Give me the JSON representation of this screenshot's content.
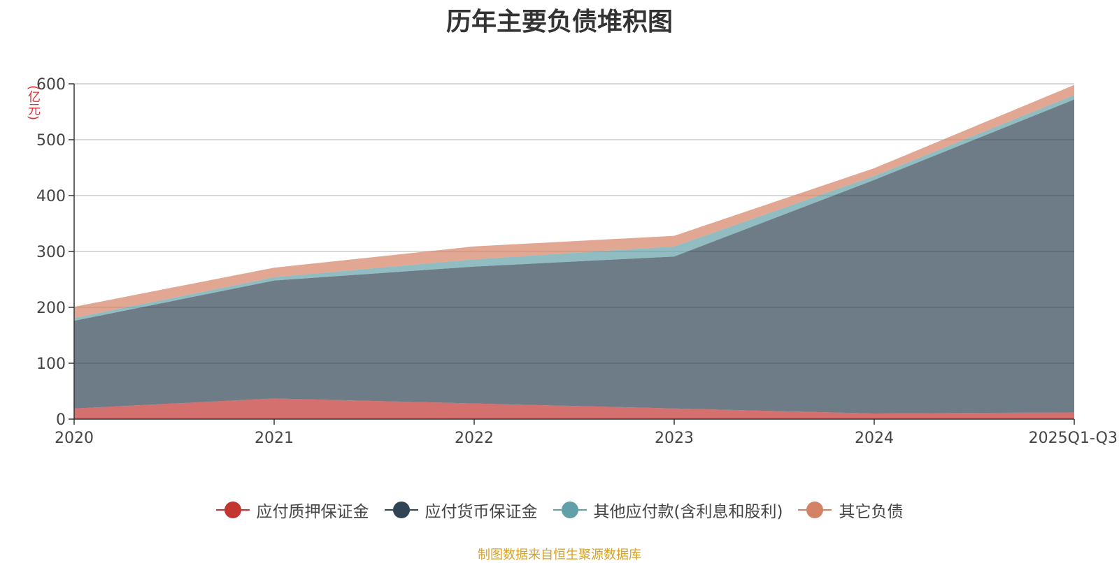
{
  "title": "历年主要负债堆积图",
  "unit_label": "(亿元)",
  "source_text": "制图数据来自恒生聚源数据库",
  "chart_data": {
    "type": "area",
    "stacked": true,
    "title": "历年主要负债堆积图",
    "ylabel": "(亿元)",
    "xlabel": "",
    "categories": [
      "2020",
      "2021",
      "2022",
      "2023",
      "2024",
      "2025Q1-Q3"
    ],
    "ylim": [
      0,
      600
    ],
    "yticks": [
      0,
      100,
      200,
      300,
      400,
      500,
      600
    ],
    "grid": true,
    "legend_position": "bottom",
    "series": [
      {
        "name": "应付质押保证金",
        "color": "#c23531",
        "values": [
          19,
          37,
          28,
          19,
          10,
          12
        ]
      },
      {
        "name": "应付货币保证金",
        "color": "#2f4554",
        "values": [
          157,
          211,
          245,
          272,
          418,
          560
        ]
      },
      {
        "name": "其他应付款(含利息和股利)",
        "color": "#61a0a8",
        "values": [
          5,
          6,
          13,
          18,
          7,
          8
        ]
      },
      {
        "name": "其它负债",
        "color": "#d48265",
        "values": [
          20,
          17,
          23,
          19,
          14,
          18
        ]
      }
    ]
  }
}
